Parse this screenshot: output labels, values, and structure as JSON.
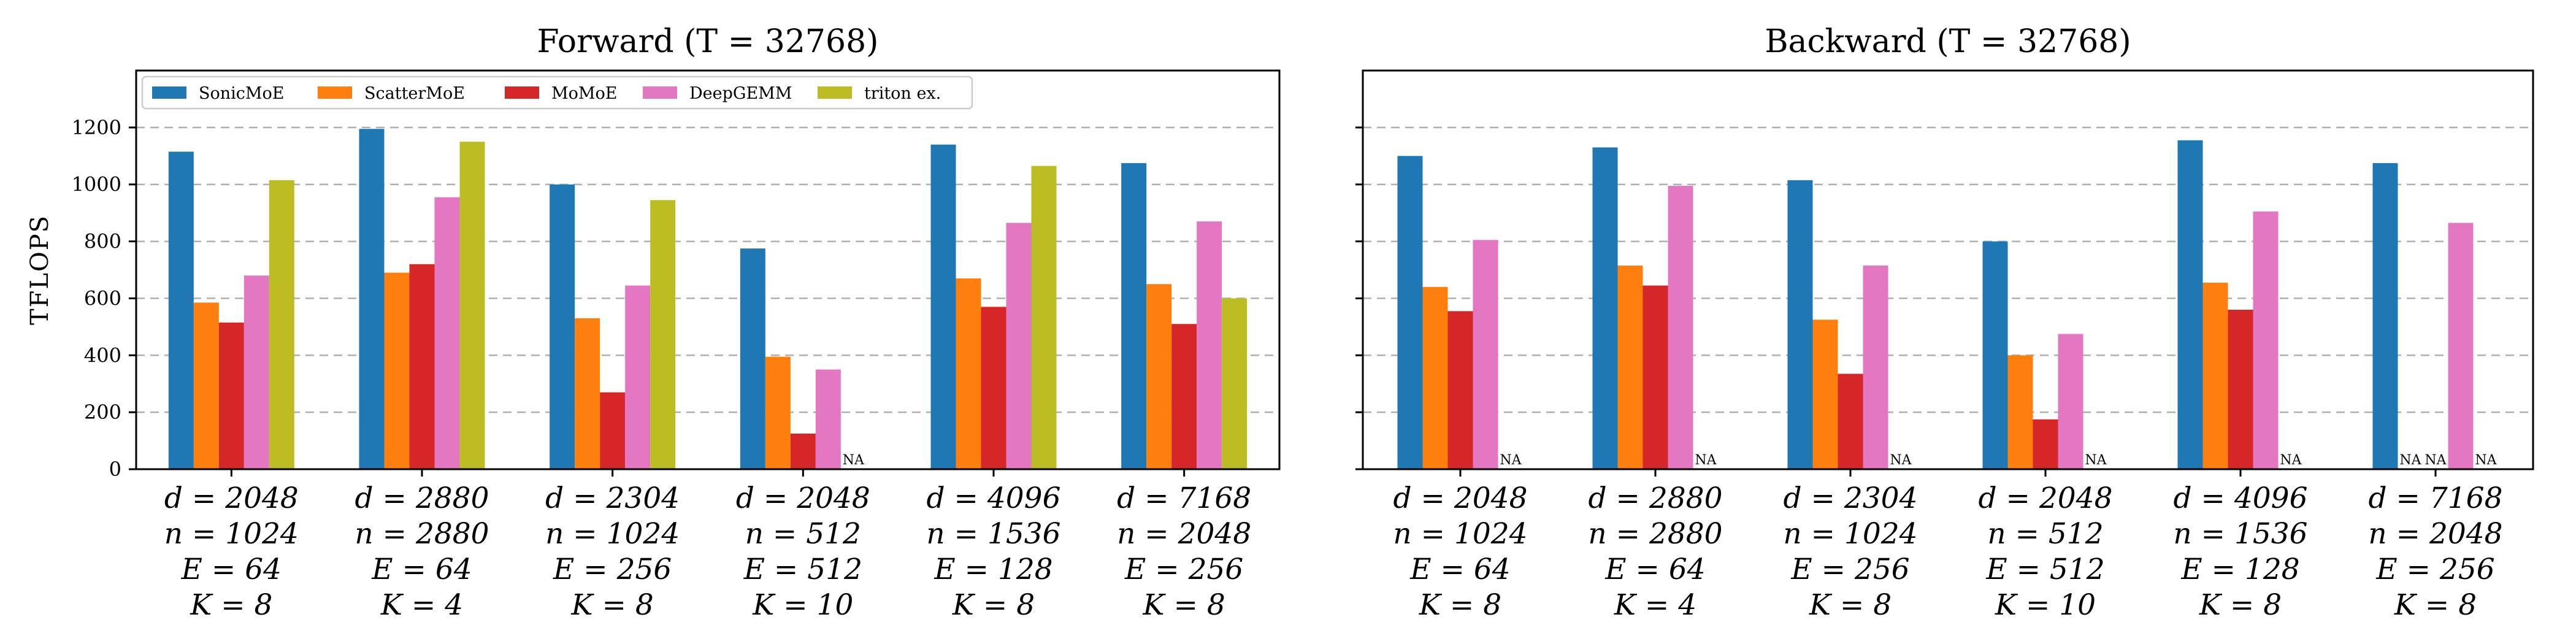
{
  "chart_data": [
    {
      "type": "bar",
      "title": "Forward (T = 32768)",
      "ylabel": "TFLOPS",
      "xlabel": "",
      "ylim": [
        0,
        1400
      ],
      "yticks": [
        0,
        200,
        400,
        600,
        800,
        1000,
        1200
      ],
      "grid": "y-dashed",
      "legend_position": "top-left",
      "na_label": "NA",
      "categories": [
        [
          "d = 2048",
          "n = 1024",
          "E = 64",
          "K = 8"
        ],
        [
          "d = 2880",
          "n = 2880",
          "E = 64",
          "K = 4"
        ],
        [
          "d = 2304",
          "n = 1024",
          "E = 256",
          "K = 8"
        ],
        [
          "d = 2048",
          "n = 512",
          "E = 512",
          "K = 10"
        ],
        [
          "d = 4096",
          "n = 1536",
          "E = 128",
          "K = 8"
        ],
        [
          "d = 7168",
          "n = 2048",
          "E = 256",
          "K = 8"
        ]
      ],
      "series": [
        {
          "name": "SonicMoE",
          "color": "#1f77b4",
          "values": [
            1115,
            1195,
            1000,
            775,
            1140,
            1075
          ]
        },
        {
          "name": "ScatterMoE",
          "color": "#ff7f0e",
          "values": [
            585,
            690,
            530,
            395,
            670,
            650
          ]
        },
        {
          "name": "MoMoE",
          "color": "#d62728",
          "values": [
            515,
            720,
            270,
            125,
            570,
            510
          ]
        },
        {
          "name": "DeepGEMM",
          "color": "#e377c2",
          "values": [
            680,
            955,
            645,
            350,
            865,
            870
          ]
        },
        {
          "name": "triton ex.",
          "color": "#bcbd22",
          "values": [
            1015,
            1150,
            945,
            null,
            1065,
            600
          ]
        }
      ]
    },
    {
      "type": "bar",
      "title": "Backward (T = 32768)",
      "ylabel": "",
      "xlabel": "",
      "ylim": [
        0,
        1400
      ],
      "yticks": [
        0,
        200,
        400,
        600,
        800,
        1000,
        1200
      ],
      "grid": "y-dashed",
      "na_label": "NA",
      "categories": [
        [
          "d = 2048",
          "n = 1024",
          "E = 64",
          "K = 8"
        ],
        [
          "d = 2880",
          "n = 2880",
          "E = 64",
          "K = 4"
        ],
        [
          "d = 2304",
          "n = 1024",
          "E = 256",
          "K = 8"
        ],
        [
          "d = 2048",
          "n = 512",
          "E = 512",
          "K = 10"
        ],
        [
          "d = 4096",
          "n = 1536",
          "E = 128",
          "K = 8"
        ],
        [
          "d = 7168",
          "n = 2048",
          "E = 256",
          "K = 8"
        ]
      ],
      "series": [
        {
          "name": "SonicMoE",
          "color": "#1f77b4",
          "values": [
            1100,
            1130,
            1015,
            800,
            1155,
            1075
          ]
        },
        {
          "name": "ScatterMoE",
          "color": "#ff7f0e",
          "values": [
            640,
            715,
            525,
            400,
            655,
            null
          ]
        },
        {
          "name": "MoMoE",
          "color": "#d62728",
          "values": [
            555,
            645,
            335,
            175,
            560,
            null
          ]
        },
        {
          "name": "DeepGEMM",
          "color": "#e377c2",
          "values": [
            805,
            995,
            715,
            475,
            905,
            865
          ]
        },
        {
          "name": "triton ex.",
          "color": "#bcbd22",
          "values": [
            null,
            null,
            null,
            null,
            null,
            null
          ]
        }
      ]
    }
  ]
}
